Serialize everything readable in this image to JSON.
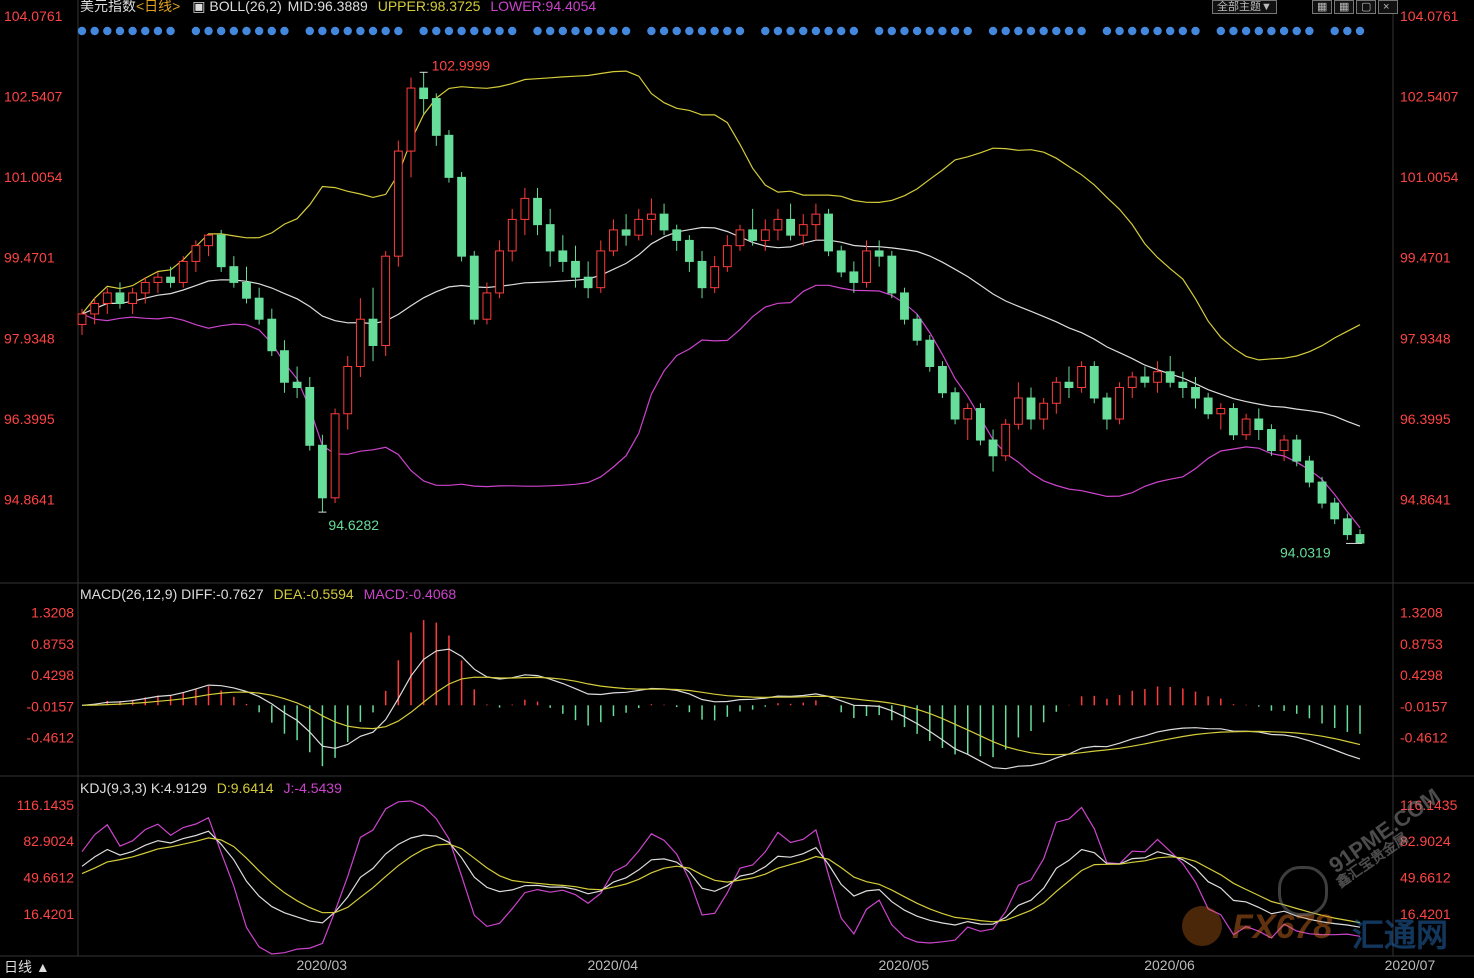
{
  "header": {
    "instrument": "美元指数",
    "period": "<日线>",
    "boll_label": "BOLL(26,2)",
    "mid_text": "MID:96.3889",
    "upper_text": "UPPER:98.3725",
    "lower_text": "LOWER:94.4054",
    "theme_button": "全部主题▼"
  },
  "macd_header": {
    "label": "MACD(26,12,9)",
    "diff_text": "DIFF:-0.7627",
    "dea_text": "DEA:-0.5594",
    "macd_text": "MACD:-0.4068"
  },
  "kdj_header": {
    "label": "KDJ(9,3,3)",
    "k_text": "K:4.9129",
    "d_text": "D:9.6414",
    "j_text": "J:-4.5439"
  },
  "bottom_tab": "日线 ▲",
  "watermark": {
    "site": "91PME.COM",
    "site_cn": "鑫汇宝贵金属",
    "brand": "FX678",
    "brand_cn": "汇通网"
  },
  "colors": {
    "up": "#ff3b3b",
    "down": "#66dd99",
    "mid": "#dddddd",
    "upper": "#d4cc3a",
    "lower": "#cc44cc",
    "axis_text": "#ff4444",
    "signal_dot": "#4488dd"
  },
  "chart_data": [
    {
      "type": "candlestick",
      "title": "美元指数<日线>",
      "x_labels": [
        "2020/03",
        "2020/04",
        "2020/05",
        "2020/06",
        "2020/07"
      ],
      "y_ticks": [
        104.0761,
        102.5407,
        101.0054,
        99.4701,
        97.9348,
        96.3995,
        94.8641
      ],
      "ylim": [
        93.45,
        104.3
      ],
      "annotations": [
        {
          "text": "102.9999",
          "value": 102.9999,
          "kind": "high"
        },
        {
          "text": "94.6282",
          "value": 94.6282,
          "kind": "low"
        },
        {
          "text": "94.0319",
          "value": 94.0319,
          "kind": "low"
        }
      ],
      "candles": [
        [
          98.2,
          98.5,
          98.0,
          98.4
        ],
        [
          98.4,
          98.7,
          98.2,
          98.6
        ],
        [
          98.6,
          98.9,
          98.4,
          98.8
        ],
        [
          98.8,
          99.0,
          98.5,
          98.6
        ],
        [
          98.6,
          98.9,
          98.4,
          98.8
        ],
        [
          98.8,
          99.1,
          98.6,
          99.0
        ],
        [
          99.0,
          99.2,
          98.8,
          99.1
        ],
        [
          99.1,
          99.3,
          98.9,
          99.0
        ],
        [
          99.0,
          99.5,
          98.9,
          99.4
        ],
        [
          99.4,
          99.8,
          99.2,
          99.7
        ],
        [
          99.7,
          99.9,
          99.5,
          99.9
        ],
        [
          99.9,
          100.0,
          99.2,
          99.3
        ],
        [
          99.3,
          99.5,
          98.9,
          99.0
        ],
        [
          99.0,
          99.3,
          98.6,
          98.7
        ],
        [
          98.7,
          98.9,
          98.2,
          98.3
        ],
        [
          98.3,
          98.5,
          97.6,
          97.7
        ],
        [
          97.7,
          97.9,
          96.9,
          97.1
        ],
        [
          97.1,
          97.4,
          96.8,
          97.0
        ],
        [
          97.0,
          97.2,
          95.8,
          95.9
        ],
        [
          95.9,
          96.1,
          94.63,
          94.9
        ],
        [
          94.9,
          96.6,
          94.8,
          96.5
        ],
        [
          96.5,
          97.6,
          96.2,
          97.4
        ],
        [
          97.4,
          98.7,
          97.2,
          98.3
        ],
        [
          98.3,
          98.9,
          97.5,
          97.8
        ],
        [
          97.8,
          99.6,
          97.6,
          99.5
        ],
        [
          99.5,
          101.7,
          99.3,
          101.5
        ],
        [
          101.5,
          102.9,
          101.0,
          102.7
        ],
        [
          102.7,
          103.0,
          102.2,
          102.5
        ],
        [
          102.5,
          102.6,
          101.6,
          101.8
        ],
        [
          101.8,
          101.9,
          100.9,
          101.0
        ],
        [
          101.0,
          101.1,
          99.4,
          99.5
        ],
        [
          99.5,
          99.6,
          98.2,
          98.3
        ],
        [
          98.3,
          99.0,
          98.2,
          98.8
        ],
        [
          98.8,
          99.8,
          98.7,
          99.6
        ],
        [
          99.6,
          100.4,
          99.4,
          100.2
        ],
        [
          100.2,
          100.8,
          99.9,
          100.6
        ],
        [
          100.6,
          100.8,
          99.9,
          100.1
        ],
        [
          100.1,
          100.4,
          99.3,
          99.6
        ],
        [
          99.6,
          99.9,
          99.2,
          99.4
        ],
        [
          99.4,
          99.7,
          98.9,
          99.1
        ],
        [
          99.1,
          99.4,
          98.7,
          98.9
        ],
        [
          98.9,
          99.8,
          98.8,
          99.6
        ],
        [
          99.6,
          100.2,
          99.5,
          100.0
        ],
        [
          100.0,
          100.3,
          99.7,
          99.9
        ],
        [
          99.9,
          100.4,
          99.8,
          100.2
        ],
        [
          100.2,
          100.6,
          99.9,
          100.3
        ],
        [
          100.3,
          100.5,
          99.9,
          100.0
        ],
        [
          100.0,
          100.1,
          99.6,
          99.8
        ],
        [
          99.8,
          99.9,
          99.2,
          99.4
        ],
        [
          99.4,
          99.6,
          98.7,
          98.9
        ],
        [
          98.9,
          99.5,
          98.8,
          99.3
        ],
        [
          99.3,
          99.9,
          99.2,
          99.7
        ],
        [
          99.7,
          100.1,
          99.6,
          100.0
        ],
        [
          100.0,
          100.4,
          99.7,
          99.8
        ],
        [
          99.8,
          100.2,
          99.6,
          100.0
        ],
        [
          100.0,
          100.4,
          99.8,
          100.2
        ],
        [
          100.2,
          100.5,
          99.8,
          99.9
        ],
        [
          99.9,
          100.3,
          99.7,
          100.1
        ],
        [
          100.1,
          100.5,
          99.8,
          100.3
        ],
        [
          100.3,
          100.4,
          99.5,
          99.6
        ],
        [
          99.6,
          99.7,
          99.1,
          99.2
        ],
        [
          99.2,
          99.4,
          98.8,
          99.0
        ],
        [
          99.0,
          99.8,
          98.9,
          99.6
        ],
        [
          99.6,
          99.8,
          99.3,
          99.5
        ],
        [
          99.5,
          99.6,
          98.7,
          98.8
        ],
        [
          98.8,
          98.9,
          98.2,
          98.3
        ],
        [
          98.3,
          98.4,
          97.8,
          97.9
        ],
        [
          97.9,
          98.0,
          97.3,
          97.4
        ],
        [
          97.4,
          97.5,
          96.8,
          96.9
        ],
        [
          96.9,
          97.0,
          96.3,
          96.4
        ],
        [
          96.4,
          96.7,
          96.0,
          96.6
        ],
        [
          96.6,
          96.7,
          95.9,
          96.0
        ],
        [
          96.0,
          96.2,
          95.4,
          95.7
        ],
        [
          95.7,
          96.4,
          95.6,
          96.3
        ],
        [
          96.3,
          97.1,
          96.2,
          96.8
        ],
        [
          96.8,
          97.0,
          96.2,
          96.4
        ],
        [
          96.4,
          96.8,
          96.2,
          96.7
        ],
        [
          96.7,
          97.2,
          96.5,
          97.1
        ],
        [
          97.1,
          97.4,
          96.8,
          97.0
        ],
        [
          97.0,
          97.5,
          96.9,
          97.4
        ],
        [
          97.4,
          97.5,
          96.7,
          96.8
        ],
        [
          96.8,
          96.9,
          96.2,
          96.4
        ],
        [
          96.4,
          97.1,
          96.3,
          97.0
        ],
        [
          97.0,
          97.3,
          96.8,
          97.2
        ],
        [
          97.2,
          97.4,
          97.0,
          97.1
        ],
        [
          97.1,
          97.5,
          96.9,
          97.3
        ],
        [
          97.3,
          97.6,
          97.0,
          97.1
        ],
        [
          97.1,
          97.3,
          96.8,
          97.0
        ],
        [
          97.0,
          97.2,
          96.6,
          96.8
        ],
        [
          96.8,
          96.9,
          96.4,
          96.5
        ],
        [
          96.5,
          96.7,
          96.2,
          96.6
        ],
        [
          96.6,
          96.7,
          96.0,
          96.1
        ],
        [
          96.1,
          96.5,
          96.0,
          96.4
        ],
        [
          96.4,
          96.6,
          96.0,
          96.2
        ],
        [
          96.2,
          96.3,
          95.7,
          95.8
        ],
        [
          95.8,
          96.1,
          95.6,
          96.0
        ],
        [
          96.0,
          96.1,
          95.5,
          95.6
        ],
        [
          95.6,
          95.7,
          95.1,
          95.2
        ],
        [
          95.2,
          95.3,
          94.7,
          94.8
        ],
        [
          94.8,
          94.9,
          94.4,
          94.5
        ],
        [
          94.5,
          94.6,
          94.1,
          94.2
        ],
        [
          94.2,
          94.3,
          94.03,
          94.04
        ]
      ]
    },
    {
      "type": "line",
      "title": "MACD(26,12,9)",
      "series_names": [
        "DIFF",
        "DEA",
        "MACD"
      ],
      "y_ticks": [
        1.3208,
        0.8753,
        0.4298,
        -0.0157,
        -0.4612
      ],
      "ylim": [
        -0.95,
        1.5
      ],
      "last_values": {
        "DIFF": -0.7627,
        "DEA": -0.5594,
        "MACD": -0.4068
      }
    },
    {
      "type": "line",
      "title": "KDJ(9,3,3)",
      "series_names": [
        "K",
        "D",
        "J"
      ],
      "y_ticks": [
        116.1435,
        82.9024,
        49.6612,
        16.4201
      ],
      "ylim": [
        -20,
        126
      ],
      "last_values": {
        "K": 4.9129,
        "D": 9.6414,
        "J": -4.5439
      }
    }
  ]
}
